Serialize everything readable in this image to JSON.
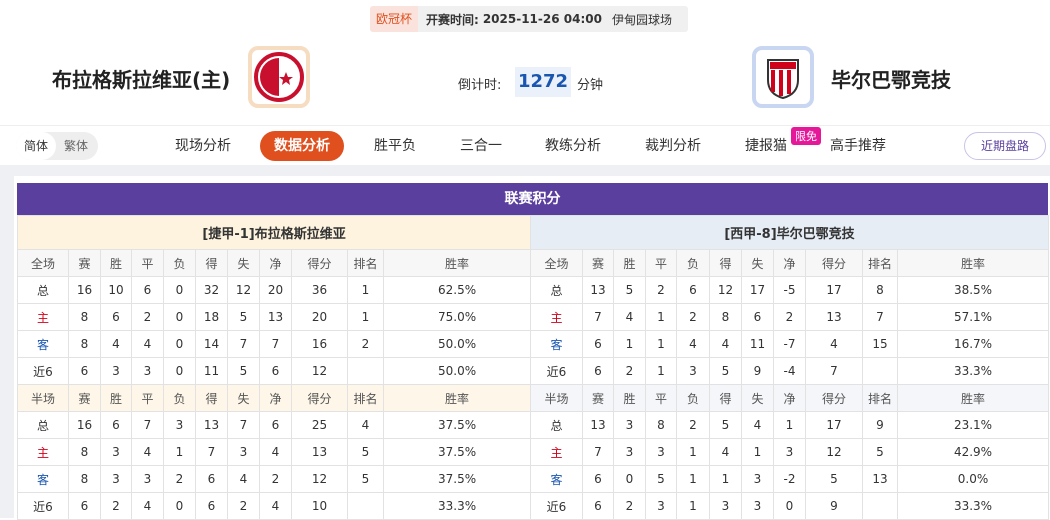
{
  "header": {
    "competition": "欧冠杯",
    "kickoff_label": "开赛时间:",
    "kickoff": "2025-11-26 04:00",
    "venue": "伊甸园球场",
    "home": "布拉格斯拉维亚(主)",
    "away": "毕尔巴鄂竞技",
    "countdown_label": "倒计时:",
    "countdown": 1272,
    "countdown_unit": "分钟"
  },
  "nav": {
    "lang": [
      "简体",
      "繁体"
    ],
    "tabs": [
      "现场分析",
      "数据分析",
      "胜平负",
      "三合一",
      "教练分析",
      "裁判分析",
      "捷报猫",
      "高手推荐"
    ],
    "badge": "限免",
    "recent": "近期盘路"
  },
  "standings": {
    "title": "联赛积分",
    "full_header": [
      "全场",
      "赛",
      "胜",
      "平",
      "负",
      "得",
      "失",
      "净",
      "得分",
      "排名",
      "胜率"
    ],
    "half_header": [
      "半场",
      "赛",
      "胜",
      "平",
      "负",
      "得",
      "失",
      "净",
      "得分",
      "排名",
      "胜率"
    ],
    "home": {
      "title": "[捷甲-1]布拉格斯拉维亚",
      "full": [
        [
          "总",
          16,
          10,
          6,
          0,
          32,
          12,
          20,
          36,
          1,
          "62.5%"
        ],
        [
          "主",
          8,
          6,
          2,
          0,
          18,
          5,
          13,
          20,
          1,
          "75.0%"
        ],
        [
          "客",
          8,
          4,
          4,
          0,
          14,
          7,
          7,
          16,
          2,
          "50.0%"
        ],
        [
          "近6",
          6,
          3,
          3,
          0,
          11,
          5,
          6,
          12,
          null,
          "50.0%"
        ]
      ],
      "half": [
        [
          "总",
          16,
          6,
          7,
          3,
          13,
          7,
          6,
          25,
          4,
          "37.5%"
        ],
        [
          "主",
          8,
          3,
          4,
          1,
          7,
          3,
          4,
          13,
          5,
          "37.5%"
        ],
        [
          "客",
          8,
          3,
          3,
          2,
          6,
          4,
          2,
          12,
          5,
          "37.5%"
        ],
        [
          "近6",
          6,
          2,
          4,
          0,
          6,
          2,
          4,
          10,
          null,
          "33.3%"
        ]
      ]
    },
    "away": {
      "title": "[西甲-8]毕尔巴鄂竞技",
      "full": [
        [
          "总",
          13,
          5,
          2,
          6,
          12,
          17,
          -5,
          17,
          8,
          "38.5%"
        ],
        [
          "主",
          7,
          4,
          1,
          2,
          8,
          6,
          2,
          13,
          7,
          "57.1%"
        ],
        [
          "客",
          6,
          1,
          1,
          4,
          4,
          11,
          -7,
          4,
          15,
          "16.7%"
        ],
        [
          "近6",
          6,
          2,
          1,
          3,
          5,
          9,
          -4,
          7,
          null,
          "33.3%"
        ]
      ],
      "half": [
        [
          "总",
          13,
          3,
          8,
          2,
          5,
          4,
          1,
          17,
          9,
          "23.1%"
        ],
        [
          "主",
          7,
          3,
          3,
          1,
          4,
          1,
          3,
          12,
          5,
          "42.9%"
        ],
        [
          "客",
          6,
          0,
          5,
          1,
          1,
          3,
          -2,
          5,
          13,
          "0.0%"
        ],
        [
          "近6",
          6,
          2,
          3,
          1,
          3,
          3,
          0,
          9,
          null,
          "33.3%"
        ]
      ]
    }
  }
}
